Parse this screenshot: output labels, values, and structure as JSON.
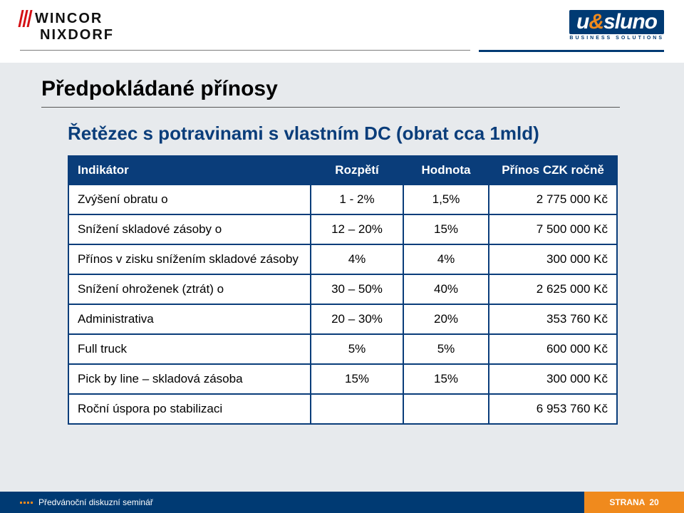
{
  "header": {
    "logo_left_line1": "WINCOR",
    "logo_left_line2": "NIXDORF",
    "logo_right_main_1": "u",
    "logo_right_main_amp": "&",
    "logo_right_main_2": "sluno",
    "logo_right_sub": "BUSINESS SOLUTIONS"
  },
  "slide": {
    "title": "Předpokládané přínosy",
    "subtitle": "Řetězec s potravinami s vlastním DC (obrat cca 1mld)"
  },
  "table": {
    "columns": [
      "Indikátor",
      "Rozpětí",
      "Hodnota",
      "Přínos CZK ročně"
    ],
    "col_align": [
      "left",
      "center",
      "center",
      "right"
    ],
    "rows": [
      [
        "Zvýšení obratu o",
        "1 - 2%",
        "1,5%",
        "2 775 000 Kč"
      ],
      [
        "Snížení skladové zásoby o",
        "12 – 20%",
        "15%",
        "7 500 000 Kč"
      ],
      [
        "Přínos v zisku snížením skladové zásoby",
        "4%",
        "4%",
        "300 000 Kč"
      ],
      [
        "Snížení ohroženek (ztrát) o",
        "30 – 50%",
        "40%",
        "2 625 000 Kč"
      ],
      [
        "Administrativa",
        "20 – 30%",
        "20%",
        "353 760 Kč"
      ],
      [
        "Full truck",
        "5%",
        "5%",
        "600 000 Kč"
      ],
      [
        "Pick by line – skladová zásoba",
        "15%",
        "15%",
        "300 000 Kč"
      ],
      [
        "Roční úspora po stabilizaci",
        "",
        "",
        "6 953 760 Kč"
      ]
    ],
    "header_bg": "#0a3d7a",
    "header_fg": "#ffffff",
    "cell_bg": "#ffffff",
    "cell_fg": "#000000",
    "border_color": "#0a3d7a",
    "font_size": 17
  },
  "footer": {
    "left_text": "Předvánoční diskuzní seminář",
    "right_label": "STRANA",
    "right_page": "20"
  },
  "colors": {
    "brand_blue": "#003a73",
    "accent_orange": "#f08a1d",
    "wn_red": "#d40f14",
    "title_black": "#000000",
    "subtitle_blue": "#0a3d7a"
  }
}
